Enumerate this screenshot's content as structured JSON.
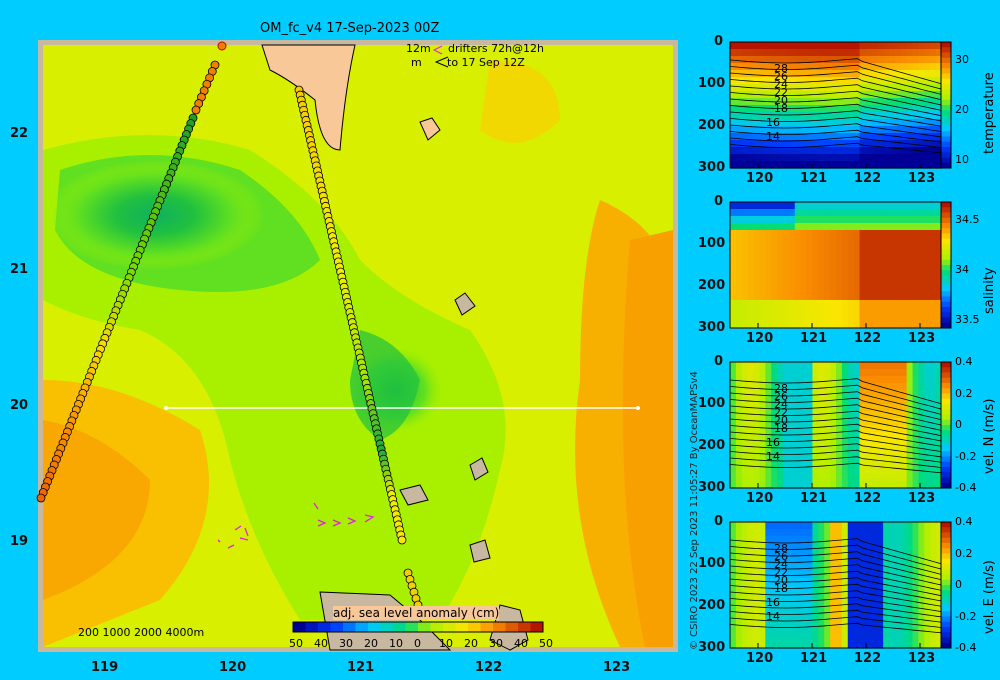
{
  "title": "OM_fc_v4  17-Sep-2023 00Z",
  "drifters": {
    "line1_left": "12m",
    "line1_right": "drifters 72h@12h",
    "line2_left": "m",
    "line2_right": "to 17 Sep 12Z"
  },
  "map": {
    "x_ticks": [
      "119",
      "120",
      "121",
      "122",
      "123"
    ],
    "y_ticks": [
      "22",
      "21",
      "20",
      "19"
    ],
    "depth_legend": "200  1000  2000  4000m",
    "colorbar_label": "adj. sea level anomaly (cm)",
    "colorbar_ticks": [
      "50",
      "40",
      "30",
      "20",
      "10",
      "0",
      "10",
      "20",
      "30",
      "40",
      "50"
    ],
    "colors": {
      "ocean_base": "#c8f000",
      "land": "#f8c898",
      "frame": "#c8b8a0"
    }
  },
  "copyright": "© CSIRO 2023   22 Sep 2023 11:05:27 By OceanMAPSv4",
  "chart_data": [
    {
      "type": "heatmap",
      "title": "",
      "xlabel": "",
      "ylabel": "",
      "x_ticks": [
        "120",
        "121",
        "122",
        "123"
      ],
      "y_ticks": [
        "0",
        "100",
        "200",
        "300"
      ],
      "ylim": [
        300,
        0
      ],
      "colorbar_label": "temperature",
      "colorbar_ticks": [
        "30",
        "20",
        "10"
      ],
      "contour_labels": [
        "28",
        "26",
        "24",
        "22",
        "20",
        "18",
        "16",
        "14"
      ]
    },
    {
      "type": "heatmap",
      "x_ticks": [
        "120",
        "121",
        "122",
        "123"
      ],
      "y_ticks": [
        "0",
        "100",
        "200",
        "300"
      ],
      "ylim": [
        300,
        0
      ],
      "colorbar_label": "salinity",
      "colorbar_ticks": [
        "34.5",
        "34",
        "33.5"
      ]
    },
    {
      "type": "heatmap",
      "x_ticks": [
        "120",
        "121",
        "122",
        "123"
      ],
      "y_ticks": [
        "0",
        "100",
        "200",
        "300"
      ],
      "ylim": [
        300,
        0
      ],
      "colorbar_label": "vel. N (m/s)",
      "colorbar_ticks": [
        "0.4",
        "0.2",
        "0",
        "-0.2",
        "-0.4"
      ],
      "contour_labels": [
        "28",
        "26",
        "24",
        "22",
        "20",
        "18",
        "16",
        "14"
      ]
    },
    {
      "type": "heatmap",
      "x_ticks": [
        "120",
        "121",
        "122",
        "123"
      ],
      "y_ticks": [
        "0",
        "100",
        "200",
        "300"
      ],
      "ylim": [
        300,
        0
      ],
      "colorbar_label": "vel. E (m/s)",
      "colorbar_ticks": [
        "0.4",
        "0.2",
        "0",
        "-0.2",
        "-0.4"
      ],
      "contour_labels": [
        "28",
        "26",
        "24",
        "22",
        "20",
        "18",
        "16",
        "14"
      ]
    }
  ]
}
